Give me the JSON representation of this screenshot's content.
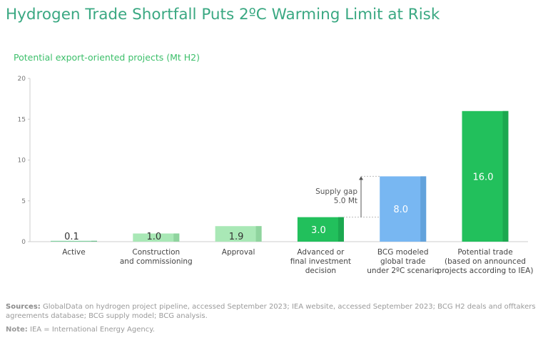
{
  "title": "Hydrogen Trade Shortfall Puts 2ºC Warming Limit at Risk",
  "sources_label": "Sources:",
  "sources_text": "GlobalData on hydrogen project pipeline, accessed September 2023; IEA website, accessed September 2023; BCG H2 deals and offtakers agreements database; BCG supply model; BCG analysis.",
  "note_label": "Note:",
  "note_text": "IEA = International Energy Agency.",
  "chart_data": {
    "type": "bar",
    "title": "Potential export-oriented projects (Mt H2)",
    "categories": [
      [
        "Active"
      ],
      [
        "Construction",
        "and commissioning"
      ],
      [
        "Approval"
      ],
      [
        "Advanced or",
        "final investment",
        "decision"
      ],
      [
        "BCG modeled",
        "global trade",
        "under 2ºC scenario"
      ],
      [
        "Potential trade",
        "(based on announced",
        "projects according to IEA)"
      ]
    ],
    "values": [
      0.1,
      1.0,
      1.9,
      3.0,
      8.0,
      16.0
    ],
    "labels": [
      "0.1",
      "1.0",
      "1.9",
      "3.0",
      "8.0",
      "16.0"
    ],
    "colors": [
      "#7fd3a0",
      "#a9e8b6",
      "#a9e8b6",
      "#22c05c",
      "#78b7f2",
      "#22c05c"
    ],
    "shade_colors": [
      "#6cbf8c",
      "#8fd49e",
      "#8fd49e",
      "#1ca850",
      "#62a2dc",
      "#1ca850"
    ],
    "label_colors": [
      "#333333",
      "#333333",
      "#333333",
      "#ffffff",
      "#ffffff",
      "#ffffff"
    ],
    "ylim": [
      0,
      20
    ],
    "yticks": [
      0,
      5,
      10,
      15,
      20
    ],
    "annotation": {
      "lines": [
        "Supply gap",
        "5.0 Mt"
      ],
      "from": 3.0,
      "to": 8.0
    }
  }
}
